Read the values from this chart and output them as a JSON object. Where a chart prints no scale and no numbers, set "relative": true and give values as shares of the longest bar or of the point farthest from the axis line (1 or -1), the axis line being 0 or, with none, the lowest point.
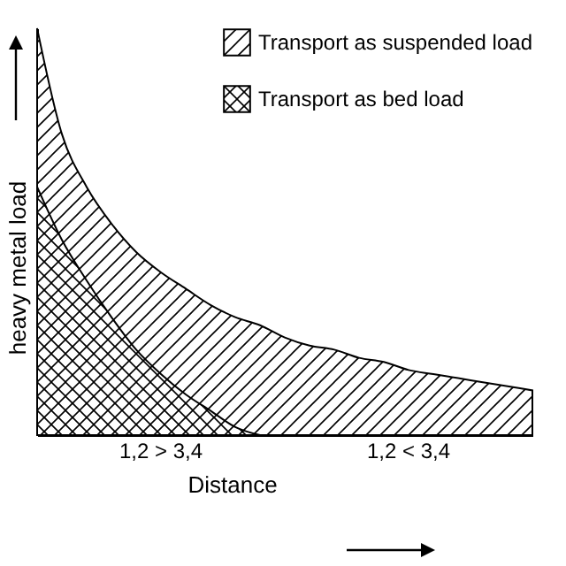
{
  "chart_data": {
    "type": "area",
    "relative": true,
    "xlabel": "Distance",
    "ylabel": "heavy metal load",
    "legend": "top right",
    "categories": [
      null,
      null,
      null,
      null,
      null,
      null,
      null,
      null,
      null,
      null,
      null,
      null,
      null,
      null,
      null,
      null,
      null,
      null,
      null,
      null,
      null
    ],
    "series": [
      {
        "name": "Transport as suspended load",
        "color": "#000000",
        "values": [
          1.0,
          0.74,
          0.61,
          0.52,
          0.45,
          0.4,
          0.36,
          0.32,
          0.29,
          0.27,
          0.24,
          0.22,
          0.21,
          0.19,
          0.18,
          0.16,
          0.15,
          0.14,
          0.13,
          0.12,
          0.11
        ]
      },
      {
        "name": "Transport as bed load",
        "color": "#000000",
        "values": [
          0.61,
          0.48,
          0.38,
          0.29,
          0.21,
          0.15,
          0.1,
          0.06,
          0.02,
          0,
          null,
          null,
          null,
          null,
          null,
          null,
          null,
          null,
          null,
          null,
          null
        ]
      }
    ],
    "annotations": [
      "1,2 > 3,4",
      "1,2 < 3,4"
    ]
  }
}
